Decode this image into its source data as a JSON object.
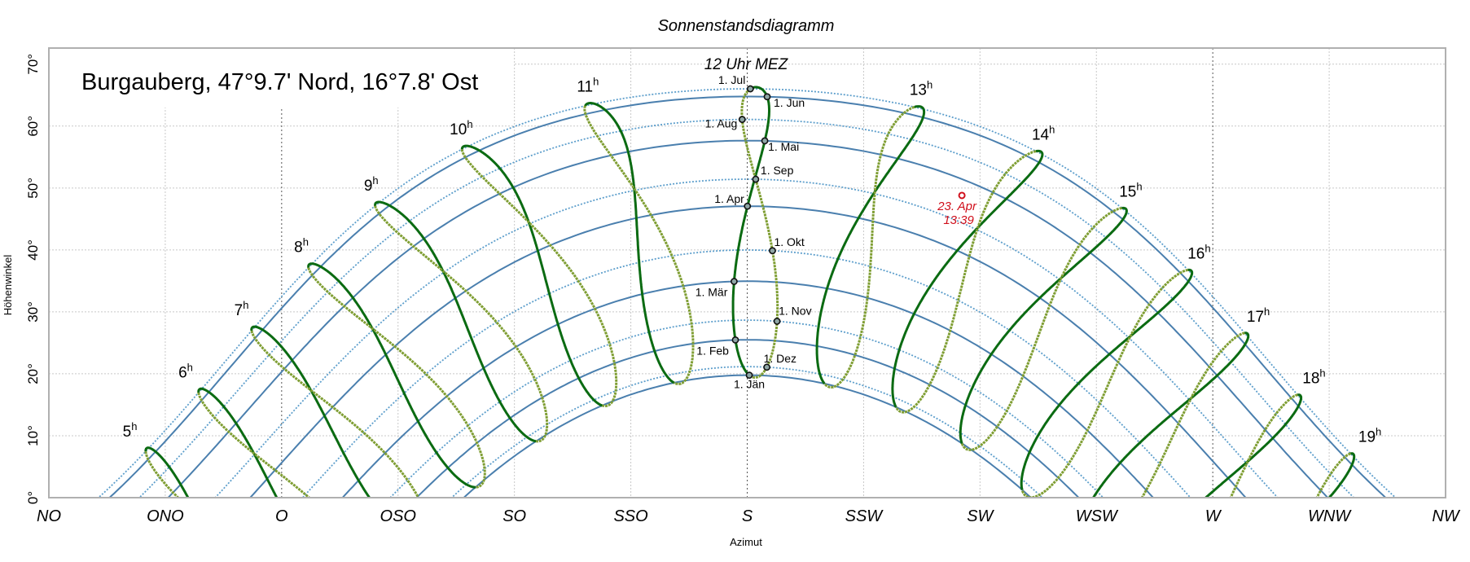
{
  "chart_data": {
    "type": "line",
    "title": "Sonnenstandsdiagramm",
    "location_label": "Burgauberg, 47°9.7' Nord, 16°7.8' Ost",
    "latitude_deg": 47.1617,
    "longitude_deg": 16.13,
    "timezone_label": "MEZ",
    "utc_offset_hours": 1,
    "xlabel": "Azimut",
    "ylabel": "Höhenwinkel",
    "xlim": [
      45,
      315
    ],
    "ylim": [
      0,
      72.6
    ],
    "grid": true,
    "x_ticks": [
      {
        "az": 45,
        "label": "NO"
      },
      {
        "az": 67.5,
        "label": "ONO"
      },
      {
        "az": 90,
        "label": "O"
      },
      {
        "az": 112.5,
        "label": "OSO"
      },
      {
        "az": 135,
        "label": "SO"
      },
      {
        "az": 157.5,
        "label": "SSO"
      },
      {
        "az": 180,
        "label": "S"
      },
      {
        "az": 202.5,
        "label": "SSW"
      },
      {
        "az": 225,
        "label": "SW"
      },
      {
        "az": 247.5,
        "label": "WSW"
      },
      {
        "az": 270,
        "label": "W"
      },
      {
        "az": 292.5,
        "label": "WNW"
      },
      {
        "az": 315,
        "label": "NW"
      }
    ],
    "y_ticks": [
      {
        "alt": 0,
        "label": "0°"
      },
      {
        "alt": 10,
        "label": "10°"
      },
      {
        "alt": 20,
        "label": "20°"
      },
      {
        "alt": 30,
        "label": "30°"
      },
      {
        "alt": 40,
        "label": "40°"
      },
      {
        "alt": 50,
        "label": "50°"
      },
      {
        "alt": 60,
        "label": "60°"
      },
      {
        "alt": 70,
        "label": "70°"
      }
    ],
    "noon_label": "12 Uhr MEZ",
    "hour_suffix": "h",
    "hours": [
      5,
      6,
      7,
      8,
      9,
      10,
      11,
      12,
      13,
      14,
      15,
      16,
      17,
      18,
      19
    ],
    "date_lines": [
      {
        "label": "1. Jän",
        "doy": 1,
        "style": "solid"
      },
      {
        "label": "1. Feb",
        "doy": 32,
        "style": "solid"
      },
      {
        "label": "1. Mär",
        "doy": 60,
        "style": "solid"
      },
      {
        "label": "1. Apr",
        "doy": 91,
        "style": "solid"
      },
      {
        "label": "1. Mai",
        "doy": 121,
        "style": "solid"
      },
      {
        "label": "1. Jun",
        "doy": 152,
        "style": "solid"
      },
      {
        "label": "1. Jul",
        "doy": 182,
        "style": "dotted"
      },
      {
        "label": "1. Aug",
        "doy": 213,
        "style": "dotted"
      },
      {
        "label": "1. Sep",
        "doy": 244,
        "style": "dotted"
      },
      {
        "label": "1. Okt",
        "doy": 274,
        "style": "dotted"
      },
      {
        "label": "1. Nov",
        "doy": 305,
        "style": "dotted"
      },
      {
        "label": "1. Dez",
        "doy": 335,
        "style": "dotted"
      }
    ],
    "analemma_halves": [
      {
        "from_doy": 1,
        "to_doy": 182,
        "style": "solid"
      },
      {
        "from_doy": 182,
        "to_doy": 366,
        "style": "dotted"
      }
    ],
    "marker": {
      "date": "23. Apr",
      "time": "13:39",
      "azimuth": 221.5,
      "altitude": 48.8
    },
    "colors": {
      "date_line_solid": "#4a7fae",
      "date_line_dotted": "#5e9fcc",
      "analemma_solid": "#0b6b12",
      "analemma_dotted": "#7f9e33",
      "marker": "#d0101c",
      "grid": "#c8c8c8",
      "cardinal_grid": "#555555",
      "month_point_fill": "#8fa6a6"
    }
  }
}
